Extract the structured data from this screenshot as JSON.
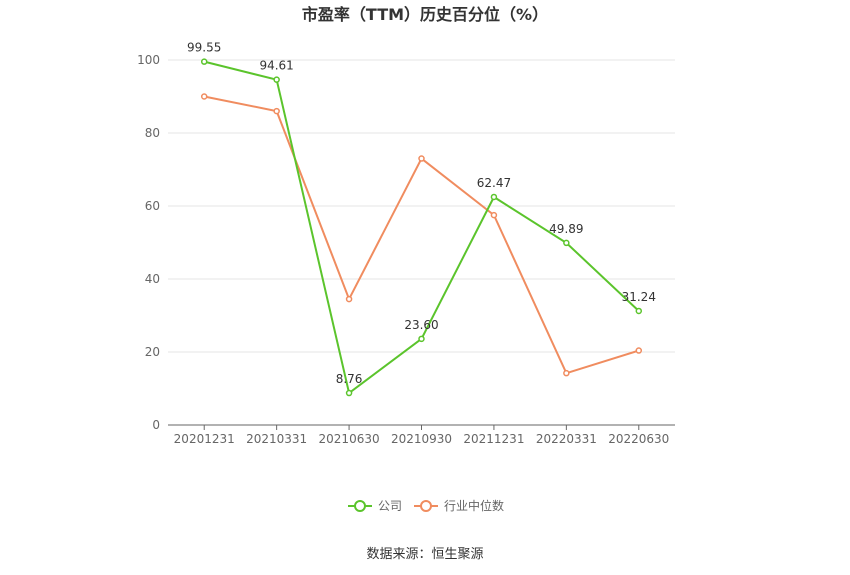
{
  "chart_data": {
    "type": "line",
    "title": "市盈率（TTM）历史百分位（%）",
    "categories": [
      "20201231",
      "20210331",
      "20210630",
      "20210930",
      "20211231",
      "20220331",
      "20220630"
    ],
    "series": [
      {
        "name": "公司",
        "color": "#5bc42c",
        "values": [
          99.55,
          94.61,
          8.76,
          23.6,
          62.47,
          49.89,
          31.24
        ],
        "labels": [
          "99.55",
          "94.61",
          "8.76",
          "23.60",
          "62.47",
          "49.89",
          "31.24"
        ]
      },
      {
        "name": "行业中位数",
        "color": "#f08c5f",
        "values": [
          90.0,
          86.0,
          34.5,
          73.0,
          57.5,
          14.2,
          20.4
        ]
      }
    ],
    "ylim": [
      0,
      100
    ],
    "yticks": [
      0,
      20,
      40,
      60,
      80,
      100
    ],
    "grid": true,
    "legend_position": "bottom-center"
  },
  "source": "数据来源：恒生聚源"
}
